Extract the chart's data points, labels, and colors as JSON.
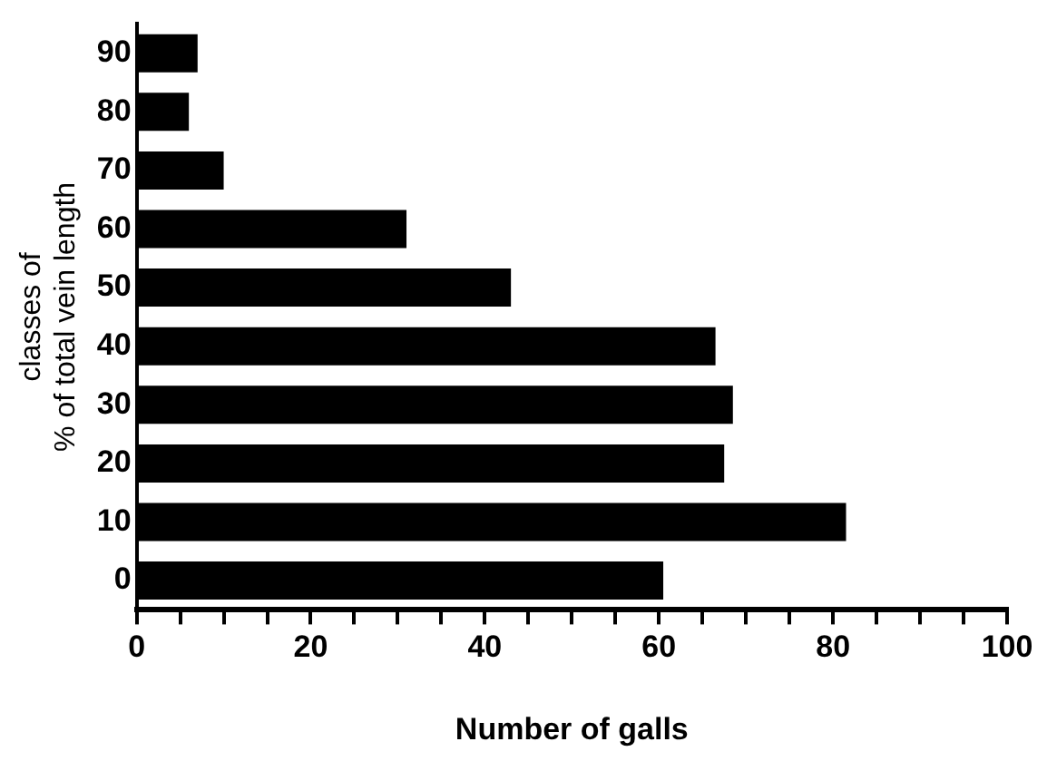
{
  "chart_data": {
    "type": "bar",
    "orientation": "horizontal",
    "xlabel": "Number of galls",
    "ylabel": "classes of\n% of total vein length",
    "categories": [
      "90",
      "80",
      "70",
      "60",
      "50",
      "40",
      "30",
      "20",
      "10",
      "0"
    ],
    "values": [
      7,
      6,
      10,
      31,
      43,
      66.5,
      68.5,
      67.5,
      81.5,
      60.5
    ],
    "color": "#000000",
    "xlim": [
      0,
      100
    ],
    "xticks": [
      0,
      {
        "value": 5,
        "label": null
      },
      {
        "value": 10,
        "label": null
      },
      {
        "value": 15,
        "label": null
      },
      20,
      {
        "value": 25,
        "label": null
      },
      {
        "value": 30,
        "label": null
      },
      {
        "value": 35,
        "label": null
      },
      40,
      {
        "value": 45,
        "label": null
      },
      {
        "value": 50,
        "label": null
      },
      {
        "value": 55,
        "label": null
      },
      60,
      {
        "value": 65,
        "label": null
      },
      {
        "value": 70,
        "label": null
      },
      {
        "value": 75,
        "label": null
      },
      80,
      {
        "value": 85,
        "label": null
      },
      {
        "value": 90,
        "label": null
      },
      {
        "value": 95,
        "label": null
      },
      100
    ],
    "grid": false,
    "legend": false
  }
}
